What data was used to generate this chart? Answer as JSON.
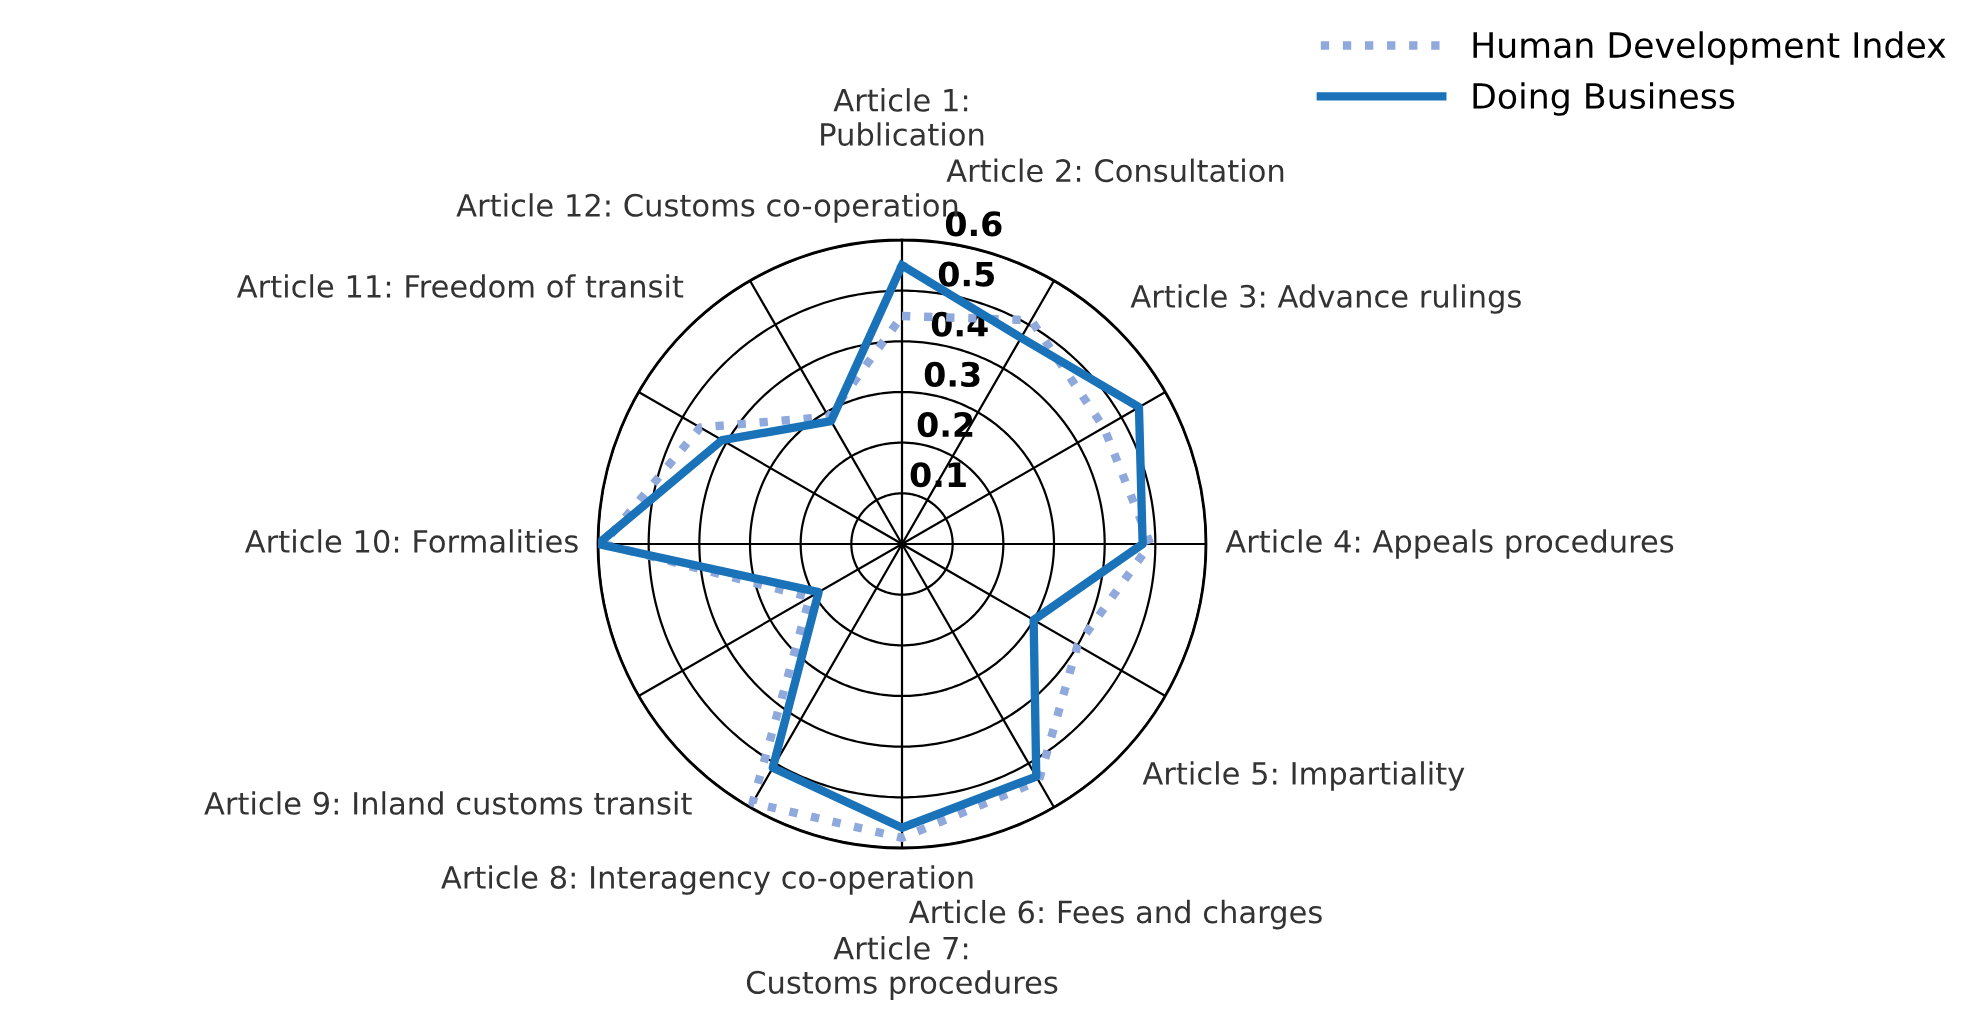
{
  "chart_data": {
    "type": "radar",
    "categories": [
      "Article 1:\nPublication",
      "Article 2: Consultation",
      "Article 3: Advance rulings",
      "Article 4: Appeals procedures",
      "Article 5: Impartiality",
      "Article 6: Fees and charges",
      "Article 7:\nCustoms procedures",
      "Article 8: Interagency co-operation",
      "Article 9: Inland customs transit",
      "Article 10: Formalities",
      "Article 11: Freedom of transit",
      "Article 12: Customs co-operation"
    ],
    "series": [
      {
        "name": "Human Development Index",
        "color": "#8fa9dc",
        "line_style": "dotted",
        "values": [
          0.45,
          0.51,
          0.46,
          0.49,
          0.4,
          0.54,
          0.58,
          0.59,
          0.21,
          0.59,
          0.46,
          0.29
        ]
      },
      {
        "name": "Doing Business",
        "color": "#1a72b8",
        "line_style": "solid",
        "values": [
          0.55,
          0.47,
          0.54,
          0.475,
          0.3,
          0.53,
          0.56,
          0.51,
          0.19,
          0.6,
          0.41,
          0.28
        ]
      }
    ],
    "ylim": [
      0,
      0.6
    ],
    "yticks": [
      0.1,
      0.2,
      0.3,
      0.4,
      0.5,
      0.6
    ],
    "grid": true,
    "legend": "top right",
    "marker": "none"
  }
}
